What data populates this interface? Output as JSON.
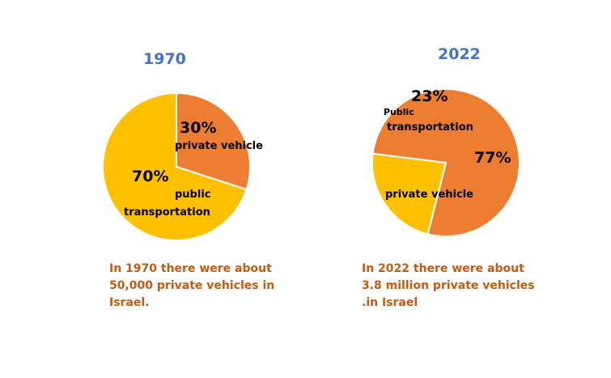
{
  "colors": {
    "title": "#4472C4",
    "caption": "#C55A11",
    "private_vehicle": "#ED7D31",
    "public_transportation": "#FFC000",
    "slice_border": "#ffffff"
  },
  "chart_data": [
    {
      "type": "pie",
      "title": "1970",
      "categories": [
        "private vehicle",
        "public transportation"
      ],
      "values": [
        30,
        70
      ],
      "value_labels": [
        "30%",
        "70%"
      ],
      "category_labels": [
        [
          "private vehicle"
        ],
        [
          "public",
          "transportation"
        ]
      ],
      "caption": [
        "In 1970  there were about",
        "50,000  private vehicles in",
        "Israel."
      ]
    },
    {
      "type": "pie",
      "title": "2022",
      "categories": [
        "private vehicle",
        "public transportation"
      ],
      "values": [
        77,
        23
      ],
      "value_labels": [
        "77%",
        "23%"
      ],
      "category_labels": [
        [
          "private vehicle"
        ],
        [
          "Public",
          "transportation"
        ]
      ],
      "caption": [
        "In 2022  there were about",
        "3.8 million private vehicles",
        ".in Israel"
      ]
    }
  ]
}
